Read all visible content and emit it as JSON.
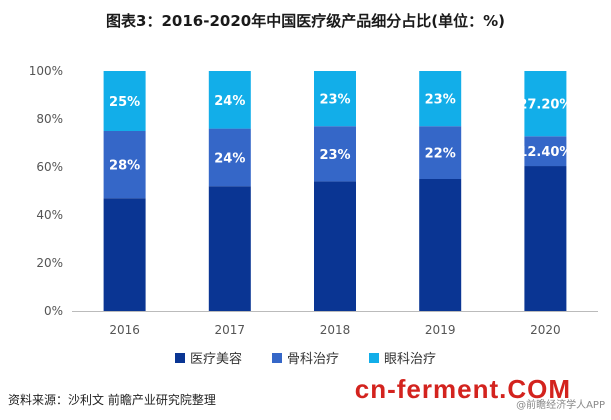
{
  "title": "图表3：2016-2020年中国医疗级产品细分占比(单位：%)",
  "chart_data": {
    "type": "bar",
    "stacked": true,
    "categories": [
      "2016",
      "2017",
      "2018",
      "2019",
      "2020"
    ],
    "series": [
      {
        "name": "医疗美容",
        "color": "#0a3593",
        "values": [
          47,
          52,
          54,
          55,
          60.4
        ],
        "labels": [
          "",
          "",
          "",
          "",
          ""
        ]
      },
      {
        "name": "骨科治疗",
        "color": "#3567c8",
        "values": [
          28,
          24,
          23,
          22,
          12.4
        ],
        "labels": [
          "28%",
          "24%",
          "23%",
          "22%",
          "12.40%"
        ]
      },
      {
        "name": "眼科治疗",
        "color": "#12aee9",
        "values": [
          25,
          24,
          23,
          23,
          27.2
        ],
        "labels": [
          "25%",
          "24%",
          "23%",
          "23%",
          "27.20%"
        ]
      }
    ],
    "y_ticks": [
      "0%",
      "20%",
      "40%",
      "60%",
      "80%",
      "100%"
    ],
    "ylim": [
      0,
      100
    ],
    "legend_position": "bottom"
  },
  "source": "资料来源：沙利文 前瞻产业研究院整理",
  "brand": "cn-ferment.COM",
  "credit": "@前瞻经济学人APP"
}
